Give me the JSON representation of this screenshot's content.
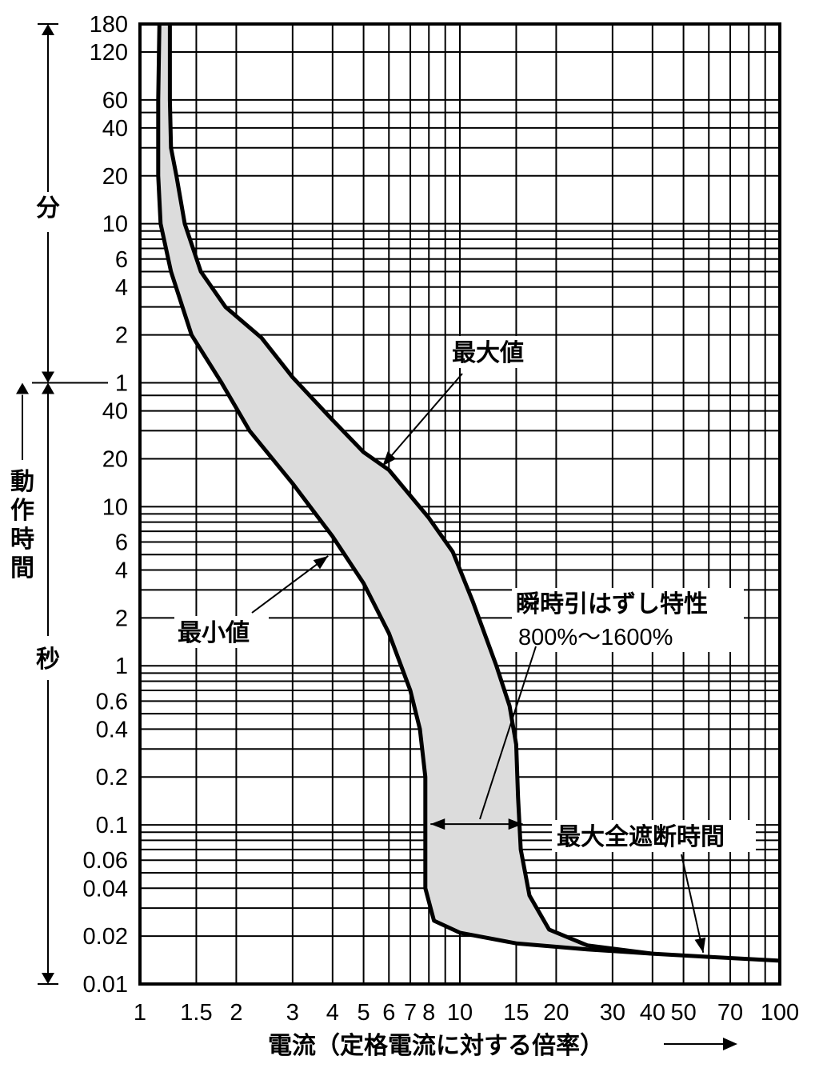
{
  "chart_data": {
    "type": "line",
    "x_scale": "log",
    "y_scale": "log",
    "grid": true,
    "xlim": [
      1,
      100
    ],
    "xticks": [
      1,
      1.5,
      2,
      3,
      4,
      5,
      6,
      7,
      8,
      10,
      15,
      20,
      30,
      40,
      50,
      70,
      100
    ],
    "xtick_labels": [
      "1",
      "1.5",
      "2",
      "3",
      "4",
      "5",
      "6",
      "7",
      "8",
      "10",
      "15",
      "20",
      "30",
      "40",
      "50",
      "70",
      "100"
    ],
    "xlabel": "電流（定格電流に対する倍率）",
    "y_minutes": {
      "label": "分",
      "ticks": [
        1,
        2,
        4,
        6,
        10,
        20,
        40,
        60,
        120,
        180
      ],
      "tick_labels": [
        "1",
        "2",
        "4",
        "6",
        "10",
        "20",
        "40",
        "60",
        "120",
        "180"
      ]
    },
    "y_seconds": {
      "label": "秒",
      "ticks": [
        0.01,
        0.02,
        0.04,
        0.06,
        0.1,
        0.2,
        0.4,
        0.6,
        1,
        2,
        4,
        6,
        10,
        20,
        40
      ],
      "tick_labels": [
        "0.01",
        "0.02",
        "0.04",
        "0.06",
        "0.1",
        "0.2",
        "0.4",
        "0.6",
        "1",
        "2",
        "4",
        "6",
        "10",
        "20",
        "40"
      ]
    },
    "ylabel": "動作時間",
    "ylim_seconds": [
      0.01,
      10800
    ],
    "series": [
      {
        "name": "最大値",
        "points_seconds": [
          [
            1.24,
            10800
          ],
          [
            1.24,
            3600
          ],
          [
            1.25,
            1800
          ],
          [
            1.3,
            1200
          ],
          [
            1.38,
            600
          ],
          [
            1.55,
            300
          ],
          [
            1.85,
            180
          ],
          [
            2.4,
            115
          ],
          [
            3.0,
            65
          ],
          [
            4.0,
            35
          ],
          [
            5.0,
            22
          ],
          [
            6.0,
            17
          ],
          [
            8.0,
            8.5
          ],
          [
            9.5,
            5.2
          ],
          [
            11.0,
            2.5
          ],
          [
            13.0,
            1.0
          ],
          [
            14.3,
            0.56
          ],
          [
            15.0,
            0.32
          ],
          [
            15.2,
            0.15
          ],
          [
            15.5,
            0.07
          ],
          [
            16.5,
            0.036
          ],
          [
            19.0,
            0.022
          ],
          [
            25.0,
            0.0175
          ],
          [
            40.0,
            0.0155
          ]
        ]
      },
      {
        "name": "最小値",
        "points_seconds": [
          [
            1.15,
            10800
          ],
          [
            1.14,
            3600
          ],
          [
            1.14,
            1200
          ],
          [
            1.16,
            600
          ],
          [
            1.25,
            300
          ],
          [
            1.45,
            120
          ],
          [
            1.8,
            60
          ],
          [
            2.2,
            30
          ],
          [
            3.0,
            14
          ],
          [
            4.0,
            6.5
          ],
          [
            5.0,
            3.3
          ],
          [
            6.0,
            1.6
          ],
          [
            7.0,
            0.7
          ],
          [
            7.5,
            0.4
          ],
          [
            7.8,
            0.2
          ],
          [
            7.8,
            0.1
          ],
          [
            7.8,
            0.04
          ],
          [
            8.3,
            0.025
          ],
          [
            10.0,
            0.021
          ],
          [
            15.0,
            0.018
          ],
          [
            25.0,
            0.0165
          ],
          [
            40.0,
            0.0155
          ]
        ]
      },
      {
        "name": "最大全遮断時間",
        "points_seconds": [
          [
            40.0,
            0.0155
          ],
          [
            60.0,
            0.0148
          ],
          [
            100.0,
            0.014
          ]
        ]
      }
    ],
    "shaded_band": "between 最小値 and 最大値",
    "annotations": [
      {
        "text": "最大値"
      },
      {
        "text": "最小値"
      },
      {
        "text": "瞬時引はずし特性",
        "subtext": "800%〜1600%",
        "range_x": [
          8,
          16
        ]
      },
      {
        "text": "最大全遮断時間"
      }
    ]
  }
}
